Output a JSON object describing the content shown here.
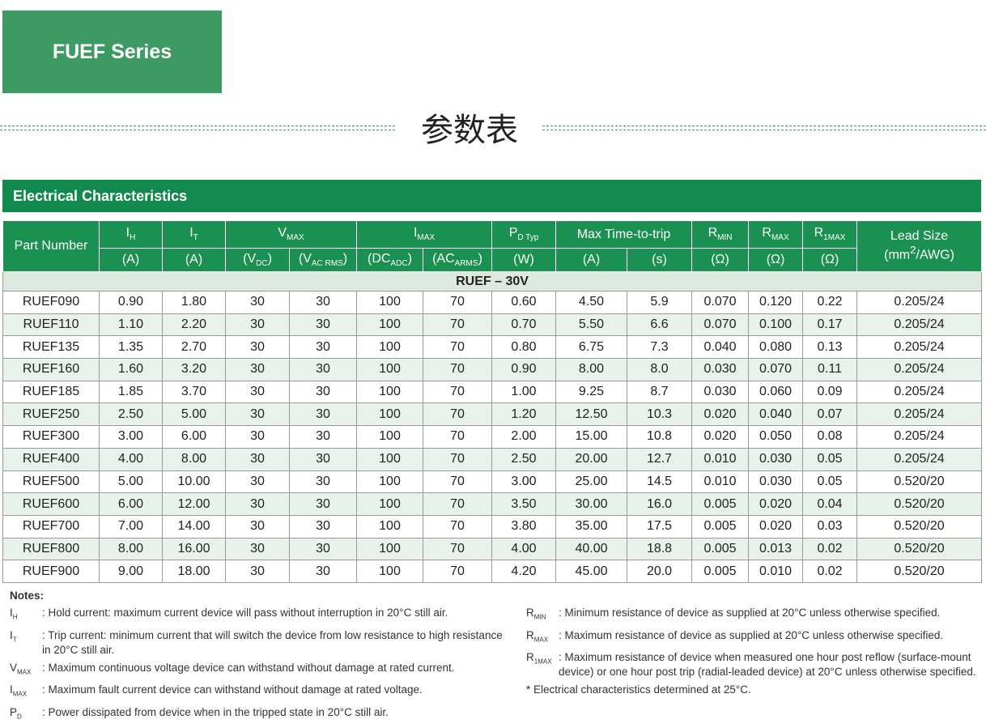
{
  "badge": "FUEF Series",
  "heading": "参数表",
  "section_title": "Electrical Characteristics",
  "table": {
    "header_top": [
      [
        {
          "t": "Part Number"
        }
      ],
      [
        {
          "t": "I"
        },
        {
          "sub": "H"
        }
      ],
      [
        {
          "t": "I"
        },
        {
          "sub": "T"
        }
      ],
      [
        {
          "t": "V"
        },
        {
          "sub": "MAX"
        }
      ],
      [
        {
          "t": "I"
        },
        {
          "sub": "MAX"
        }
      ],
      [
        {
          "t": "P"
        },
        {
          "sub": "D Typ"
        }
      ],
      [
        {
          "t": "Max Time-to-trip"
        }
      ],
      [
        {
          "t": "R"
        },
        {
          "sub": "MIN"
        }
      ],
      [
        {
          "t": "R"
        },
        {
          "sub": "MAX"
        }
      ],
      [
        {
          "t": "R"
        },
        {
          "sub": "1MAX"
        }
      ],
      [
        {
          "t": "Lead Size"
        },
        {
          "t": "(mm"
        },
        {
          "sup": "2"
        },
        {
          "t": "/AWG)"
        }
      ]
    ],
    "header_units": [
      [
        {
          "t": "(A)"
        }
      ],
      [
        {
          "t": "(A)"
        }
      ],
      [
        {
          "t": "(V"
        },
        {
          "sub": "DC"
        },
        {
          "t": ")"
        }
      ],
      [
        {
          "t": "(V"
        },
        {
          "sub": "AC RMS"
        },
        {
          "t": ")"
        }
      ],
      [
        {
          "t": "(DC"
        },
        {
          "sub": "ADC"
        },
        {
          "t": ")"
        }
      ],
      [
        {
          "t": "(AC"
        },
        {
          "sub": "ARMS"
        },
        {
          "t": ")"
        }
      ],
      [
        {
          "t": "(W)"
        }
      ],
      [
        {
          "t": "(A)"
        }
      ],
      [
        {
          "t": "(s)"
        }
      ],
      [
        {
          "t": "(Ω)"
        }
      ],
      [
        {
          "t": "(Ω)"
        }
      ],
      [
        {
          "t": "(Ω)"
        }
      ]
    ],
    "group_label": "RUEF – 30V",
    "rows": [
      [
        "RUEF090",
        "0.90",
        "1.80",
        "30",
        "30",
        "100",
        "70",
        "0.60",
        "4.50",
        "5.9",
        "0.070",
        "0.120",
        "0.22",
        "0.205/24"
      ],
      [
        "RUEF110",
        "1.10",
        "2.20",
        "30",
        "30",
        "100",
        "70",
        "0.70",
        "5.50",
        "6.6",
        "0.070",
        "0.100",
        "0.17",
        "0.205/24"
      ],
      [
        "RUEF135",
        "1.35",
        "2.70",
        "30",
        "30",
        "100",
        "70",
        "0.80",
        "6.75",
        "7.3",
        "0.040",
        "0.080",
        "0.13",
        "0.205/24"
      ],
      [
        "RUEF160",
        "1.60",
        "3.20",
        "30",
        "30",
        "100",
        "70",
        "0.90",
        "8.00",
        "8.0",
        "0.030",
        "0.070",
        "0.11",
        "0.205/24"
      ],
      [
        "RUEF185",
        "1.85",
        "3.70",
        "30",
        "30",
        "100",
        "70",
        "1.00",
        "9.25",
        "8.7",
        "0.030",
        "0.060",
        "0.09",
        "0.205/24"
      ],
      [
        "RUEF250",
        "2.50",
        "5.00",
        "30",
        "30",
        "100",
        "70",
        "1.20",
        "12.50",
        "10.3",
        "0.020",
        "0.040",
        "0.07",
        "0.205/24"
      ],
      [
        "RUEF300",
        "3.00",
        "6.00",
        "30",
        "30",
        "100",
        "70",
        "2.00",
        "15.00",
        "10.8",
        "0.020",
        "0.050",
        "0.08",
        "0.205/24"
      ],
      [
        "RUEF400",
        "4.00",
        "8.00",
        "30",
        "30",
        "100",
        "70",
        "2.50",
        "20.00",
        "12.7",
        "0.010",
        "0.030",
        "0.05",
        "0.205/24"
      ],
      [
        "RUEF500",
        "5.00",
        "10.00",
        "30",
        "30",
        "100",
        "70",
        "3.00",
        "25.00",
        "14.5",
        "0.010",
        "0.030",
        "0.05",
        "0.520/20"
      ],
      [
        "RUEF600",
        "6.00",
        "12.00",
        "30",
        "30",
        "100",
        "70",
        "3.50",
        "30.00",
        "16.0",
        "0.005",
        "0.020",
        "0.04",
        "0.520/20"
      ],
      [
        "RUEF700",
        "7.00",
        "14.00",
        "30",
        "30",
        "100",
        "70",
        "3.80",
        "35.00",
        "17.5",
        "0.005",
        "0.020",
        "0.03",
        "0.520/20"
      ],
      [
        "RUEF800",
        "8.00",
        "16.00",
        "30",
        "30",
        "100",
        "70",
        "4.00",
        "40.00",
        "18.8",
        "0.005",
        "0.013",
        "0.02",
        "0.520/20"
      ],
      [
        "RUEF900",
        "9.00",
        "18.00",
        "30",
        "30",
        "100",
        "70",
        "4.20",
        "45.00",
        "20.0",
        "0.005",
        "0.010",
        "0.02",
        "0.520/20"
      ]
    ]
  },
  "notes": {
    "title": "Notes:",
    "left": [
      {
        "symbol": [
          {
            "t": "I"
          },
          {
            "sub": "H"
          }
        ],
        "text": ": Hold current: maximum current device will pass without interruption in 20°C still air."
      },
      {
        "symbol": [
          {
            "t": "I"
          },
          {
            "sub": "T"
          }
        ],
        "text": ": Trip current: minimum current that will switch the device from low resistance to high resistance in 20°C still air."
      },
      {
        "symbol": [
          {
            "t": "V"
          },
          {
            "sub": "MAX"
          }
        ],
        "text": ": Maximum continuous voltage device can withstand without damage at rated current."
      },
      {
        "symbol": [
          {
            "t": "I"
          },
          {
            "sub": "MAX"
          }
        ],
        "text": ": Maximum fault current device can withstand without damage at rated voltage."
      },
      {
        "symbol": [
          {
            "t": "P"
          },
          {
            "sub": "D"
          }
        ],
        "text": ": Power dissipated from device when in the tripped state in 20°C still air."
      }
    ],
    "right": [
      {
        "symbol": [
          {
            "t": "R"
          },
          {
            "sub": "MIN"
          }
        ],
        "text": ": Minimum resistance of device as supplied at 20°C unless otherwise specified."
      },
      {
        "symbol": [
          {
            "t": "R"
          },
          {
            "sub": "MAX"
          }
        ],
        "text": ": Maximum resistance of device as supplied at 20°C unless otherwise specified."
      },
      {
        "symbol": [
          {
            "t": "R"
          },
          {
            "sub": "1MAX"
          }
        ],
        "text": ": Maximum resistance of device when measured one hour post reflow (surface-mount device) or one hour post trip (radial-leaded device) at 20°C unless otherwise specified."
      }
    ],
    "footnote": "* Electrical characteristics determined at 25°C."
  }
}
